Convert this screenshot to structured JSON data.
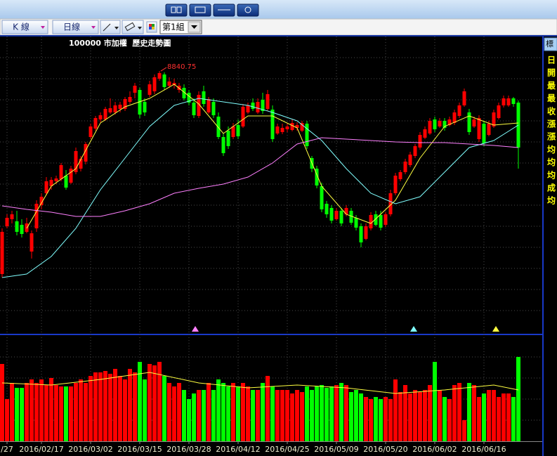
{
  "toolbar": {
    "buttons": [
      "K 線",
      "日線"
    ],
    "group": "第1組"
  },
  "side_panel": {
    "tab": "標",
    "labels": [
      "日",
      "開",
      "最",
      "最",
      "收",
      "漲",
      "漲",
      "均",
      "均",
      "均",
      "成",
      "均"
    ]
  },
  "chart_data": {
    "type": "candlestick",
    "title": "100000 市加權  歷史走勢圖",
    "xlim": [
      -0.43,
      109.86
    ],
    "ylim": [
      7341,
      9037
    ],
    "up_color": "#ff0000",
    "down_color": "#00ff00",
    "xticks": [
      {
        "value": 1,
        "label": "/27"
      },
      {
        "value": 8,
        "label": "2016/02/17"
      },
      {
        "value": 18,
        "label": "2016/03/02"
      },
      {
        "value": 28,
        "label": "2016/03/15"
      },
      {
        "value": 38,
        "label": "2016/03/28"
      },
      {
        "value": 48,
        "label": "2016/04/12"
      },
      {
        "value": 58,
        "label": "2016/04/25"
      },
      {
        "value": 68,
        "label": "2016/05/09"
      },
      {
        "value": 78,
        "label": "2016/05/20"
      },
      {
        "value": 88,
        "label": "2016/06/02"
      },
      {
        "value": 98,
        "label": "2016/06/16"
      }
    ],
    "open": [
      7685,
      7957,
      7997,
      7985,
      7965,
      7925,
      7813,
      7945,
      8077,
      8145,
      8185,
      8213,
      8225,
      8245,
      8205,
      8265,
      8285,
      8325,
      8465,
      8513,
      8565,
      8565,
      8605,
      8605,
      8625,
      8625,
      8665,
      8717,
      8733,
      8665,
      8705,
      8725,
      8797,
      8821,
      8757,
      8761,
      8733,
      8745,
      8717,
      8661,
      8585,
      8725,
      8605,
      8665,
      8581,
      8465,
      8501,
      8465,
      8533,
      8525,
      8605,
      8661,
      8605,
      8677,
      8625,
      8621,
      8485,
      8493,
      8509,
      8505,
      8517,
      8501,
      8541,
      8345,
      8285,
      8185,
      8085,
      8061,
      7997,
      8045,
      8025,
      8045,
      8005,
      7957,
      7885,
      7945,
      8025,
      8021,
      7965,
      8025,
      8145,
      8225,
      8265,
      8305,
      8357,
      8405,
      8461,
      8485,
      8565,
      8525,
      8557,
      8533,
      8545,
      8585,
      8645,
      8605,
      8525,
      8453,
      8541,
      8477,
      8525,
      8573,
      8645,
      8645,
      8685,
      8661
    ],
    "high": [
      7945,
      8025,
      8045,
      8045,
      7997,
      8005,
      7933,
      8105,
      8145,
      8237,
      8237,
      8245,
      8317,
      8277,
      8301,
      8405,
      8357,
      8437,
      8541,
      8585,
      8605,
      8637,
      8685,
      8665,
      8665,
      8693,
      8725,
      8773,
      8745,
      8685,
      8785,
      8821,
      8840.75,
      8833,
      8805,
      8797,
      8773,
      8765,
      8733,
      8685,
      8725,
      8757,
      8693,
      8685,
      8605,
      8485,
      8525,
      8545,
      8565,
      8653,
      8661,
      8685,
      8685,
      8717,
      8733,
      8645,
      8541,
      8541,
      8541,
      8565,
      8549,
      8557,
      8557,
      8357,
      8301,
      8205,
      8101,
      8077,
      8061,
      8061,
      8077,
      8061,
      8021,
      7973,
      7973,
      8037,
      8045,
      8045,
      8037,
      8165,
      8261,
      8277,
      8341,
      8381,
      8425,
      8493,
      8525,
      8573,
      8581,
      8573,
      8573,
      8581,
      8621,
      8661,
      8741,
      8625,
      8581,
      8589,
      8557,
      8557,
      8621,
      8661,
      8701,
      8701,
      8693,
      8673
    ],
    "low": [
      7665,
      7945,
      7973,
      7905,
      7893,
      7917,
      7773,
      7925,
      8053,
      8133,
      8165,
      8197,
      8213,
      8165,
      8197,
      8253,
      8269,
      8309,
      8453,
      8501,
      8549,
      8557,
      8597,
      8593,
      8605,
      8613,
      8653,
      8685,
      8573,
      8585,
      8693,
      8709,
      8785,
      8733,
      8745,
      8741,
      8717,
      8673,
      8645,
      8573,
      8573,
      8637,
      8597,
      8573,
      8453,
      8357,
      8397,
      8453,
      8453,
      8517,
      8597,
      8613,
      8597,
      8597,
      8613,
      8437,
      8477,
      8481,
      8493,
      8497,
      8501,
      8493,
      8397,
      8265,
      8173,
      8037,
      8005,
      7973,
      7989,
      7957,
      8013,
      7965,
      7933,
      7837,
      7877,
      7933,
      7957,
      7933,
      7953,
      8013,
      8133,
      8213,
      8253,
      8293,
      8345,
      8393,
      8453,
      8477,
      8493,
      8517,
      8501,
      8525,
      8533,
      8573,
      8637,
      8477,
      8517,
      8437,
      8413,
      8469,
      8517,
      8565,
      8633,
      8637,
      8637,
      8285
    ],
    "close": [
      7925,
      8005,
      8025,
      7925,
      7913,
      7973,
      7917,
      8085,
      8125,
      8213,
      8221,
      8229,
      8305,
      8177,
      8285,
      8385,
      8341,
      8425,
      8525,
      8573,
      8589,
      8625,
      8629,
      8645,
      8649,
      8681,
      8693,
      8757,
      8593,
      8605,
      8765,
      8805,
      8829,
      8749,
      8781,
      8773,
      8757,
      8685,
      8661,
      8589,
      8705,
      8653,
      8681,
      8589,
      8465,
      8373,
      8413,
      8525,
      8469,
      8637,
      8645,
      8625,
      8665,
      8613,
      8709,
      8453,
      8525,
      8517,
      8525,
      8545,
      8533,
      8545,
      8413,
      8285,
      8189,
      8053,
      8025,
      7989,
      8045,
      7973,
      8061,
      7977,
      7949,
      7865,
      7957,
      8021,
      7965,
      7949,
      8025,
      8145,
      8245,
      8265,
      8325,
      8365,
      8413,
      8477,
      8509,
      8557,
      8509,
      8557,
      8517,
      8565,
      8605,
      8645,
      8725,
      8493,
      8565,
      8573,
      8429,
      8541,
      8605,
      8645,
      8685,
      8685,
      8653,
      8405
    ],
    "annotation": {
      "x": 32,
      "value": 8840.75,
      "color": "#ff3030"
    },
    "moving_averages": [
      {
        "color": "#ffff40",
        "x": [
          5,
          10,
          15,
          20,
          25,
          30,
          35,
          40,
          45,
          50,
          55,
          60,
          65,
          70,
          75,
          80,
          85,
          90,
          95,
          100,
          105
        ],
        "values": [
          7945,
          8185,
          8285,
          8545,
          8637,
          8685,
          8765,
          8653,
          8485,
          8585,
          8585,
          8517,
          8185,
          8025,
          7973,
          8105,
          8345,
          8525,
          8585,
          8533,
          8545
        ]
      },
      {
        "color": "#80ffff",
        "x": [
          0,
          5,
          10,
          15,
          20,
          25,
          30,
          35,
          40,
          45,
          50,
          55,
          60,
          65,
          70,
          75,
          80,
          85,
          90,
          95,
          100,
          105
        ],
        "values": [
          7665,
          7685,
          7785,
          7945,
          8165,
          8345,
          8525,
          8645,
          8685,
          8665,
          8645,
          8605,
          8557,
          8445,
          8285,
          8145,
          8085,
          8125,
          8265,
          8405,
          8445,
          8533
        ]
      },
      {
        "color": "#ff80ff",
        "x": [
          0,
          5,
          10,
          15,
          20,
          25,
          30,
          35,
          40,
          45,
          50,
          55,
          60,
          65,
          70,
          75,
          80,
          85,
          90,
          95,
          100,
          105
        ],
        "values": [
          8073,
          8053,
          8037,
          8013,
          8013,
          8045,
          8085,
          8145,
          8173,
          8197,
          8237,
          8317,
          8425,
          8461,
          8453,
          8445,
          8437,
          8433,
          8433,
          8425,
          8417,
          8405
        ]
      }
    ],
    "volume": {
      "ylim": [
        0,
        1500
      ],
      "values": [
        1100,
        600,
        830,
        760,
        760,
        830,
        880,
        830,
        880,
        800,
        900,
        800,
        780,
        780,
        780,
        830,
        880,
        830,
        930,
        980,
        980,
        1000,
        960,
        1030,
        930,
        880,
        1030,
        980,
        1130,
        880,
        1100,
        1080,
        1130,
        930,
        830,
        780,
        830,
        730,
        600,
        680,
        730,
        730,
        830,
        730,
        880,
        830,
        780,
        830,
        780,
        830,
        780,
        730,
        730,
        830,
        930,
        780,
        730,
        730,
        730,
        680,
        730,
        700,
        780,
        730,
        780,
        800,
        760,
        780,
        800,
        830,
        800,
        700,
        730,
        680,
        630,
        600,
        630,
        600,
        630,
        600,
        880,
        700,
        800,
        680,
        730,
        700,
        730,
        800,
        1130,
        730,
        630,
        600,
        800,
        830,
        300,
        830,
        800,
        630,
        680,
        730,
        730,
        630,
        680,
        680,
        630,
        1200
      ],
      "average": {
        "color": "#ffff40",
        "x": [
          0,
          10,
          20,
          30,
          40,
          50,
          60,
          70,
          80,
          90,
          100,
          105
        ],
        "values": [
          830,
          800,
          880,
          980,
          830,
          760,
          800,
          760,
          680,
          730,
          800,
          730
        ]
      }
    }
  }
}
